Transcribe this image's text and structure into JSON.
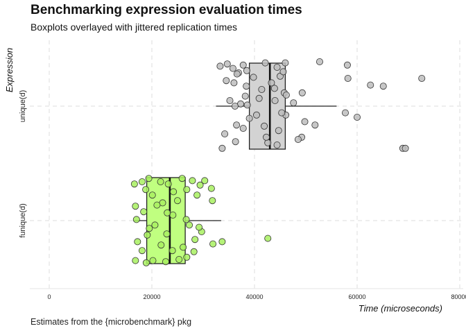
{
  "chart_data": {
    "type": "boxplot",
    "title": "Benchmarking expression evaluation times",
    "subtitle": "Boxplots overlayed with jittered replication times",
    "caption": "Estimates from the {microbenchmark} pkg",
    "xlabel": "Time (microseconds)",
    "ylabel": "Expression",
    "xlim": [
      -4000,
      80000
    ],
    "xticks": [
      0,
      20000,
      40000,
      60000,
      80000
    ],
    "tick_labels": [
      "0",
      "20000",
      "40000",
      "60000",
      "80000"
    ],
    "grid": "dashed",
    "categories": [
      "funique(d)",
      "unique(d)"
    ],
    "series": [
      {
        "category": "unique(d)",
        "fill": "#d3d3d3",
        "point_color": "#bdbdbd",
        "box": {
          "lower_whisker": 32500,
          "q1": 39000,
          "median": 43000,
          "q3": 46000,
          "upper_whisker": 56000
        },
        "points": [
          [
            34700,
            0.38
          ],
          [
            36900,
            0.3
          ],
          [
            35800,
            0.34
          ],
          [
            37800,
            0.37
          ],
          [
            38500,
            0.32
          ],
          [
            42100,
            0.39
          ],
          [
            44400,
            0.35
          ],
          [
            46000,
            0.39
          ],
          [
            52700,
            0.4
          ],
          [
            58100,
            0.37
          ],
          [
            62600,
            0.19
          ],
          [
            72600,
            0.25
          ],
          [
            65100,
            0.18
          ],
          [
            58200,
            0.25
          ],
          [
            45000,
            0.27
          ],
          [
            39800,
            0.26
          ],
          [
            36600,
            0.29
          ],
          [
            34500,
            0.23
          ],
          [
            33300,
            0.36
          ],
          [
            36000,
            0.21
          ],
          [
            41400,
            0.15
          ],
          [
            43900,
            0.16
          ],
          [
            45800,
            0.12
          ],
          [
            45600,
            0.31
          ],
          [
            40900,
            0.07
          ],
          [
            46200,
            0.1
          ],
          [
            49300,
            0.12
          ],
          [
            38200,
            0.09
          ],
          [
            37300,
            0.02
          ],
          [
            36200,
            0.0
          ],
          [
            38600,
            0.01
          ],
          [
            39000,
            -0.11
          ],
          [
            40400,
            -0.08
          ],
          [
            46100,
            -0.08
          ],
          [
            49800,
            -0.14
          ],
          [
            51800,
            -0.17
          ],
          [
            57700,
            -0.06
          ],
          [
            60000,
            -0.1
          ],
          [
            49200,
            -0.28
          ],
          [
            44700,
            -0.22
          ],
          [
            41900,
            -0.18
          ],
          [
            36300,
            -0.32
          ],
          [
            34200,
            -0.25
          ],
          [
            33700,
            -0.38
          ],
          [
            37800,
            -0.2
          ],
          [
            42600,
            -0.33
          ],
          [
            44400,
            -0.35
          ],
          [
            48500,
            -0.3
          ],
          [
            68900,
            -0.38
          ],
          [
            69400,
            -0.38
          ],
          [
            35200,
            0.05
          ],
          [
            47600,
            0.03
          ],
          [
            36500,
            -0.17
          ],
          [
            42300,
            -0.28
          ],
          [
            45300,
            -0.06
          ],
          [
            43300,
            0.21
          ],
          [
            44000,
            0.05
          ],
          [
            38400,
            0.18
          ]
        ]
      },
      {
        "category": "funique(d)",
        "fill": "#c0ff80",
        "point_color": "#a8f060",
        "box": {
          "lower_whisker": 16500,
          "q1": 19000,
          "median": 23500,
          "q3": 26500,
          "upper_whisker": 33500
        },
        "points": [
          [
            16600,
            0.33
          ],
          [
            18100,
            0.35
          ],
          [
            19400,
            0.38
          ],
          [
            21700,
            0.35
          ],
          [
            23200,
            0.33
          ],
          [
            25900,
            0.38
          ],
          [
            27900,
            0.36
          ],
          [
            29400,
            0.32
          ],
          [
            31600,
            0.29
          ],
          [
            30300,
            0.36
          ],
          [
            28800,
            0.23
          ],
          [
            26800,
            0.28
          ],
          [
            24200,
            0.26
          ],
          [
            22100,
            0.16
          ],
          [
            18800,
            0.28
          ],
          [
            16800,
            0.13
          ],
          [
            18400,
            0.08
          ],
          [
            17000,
            0.01
          ],
          [
            20600,
            -0.04
          ],
          [
            24100,
            0.05
          ],
          [
            27300,
            -0.04
          ],
          [
            29700,
            -0.1
          ],
          [
            31900,
            -0.21
          ],
          [
            28400,
            -0.17
          ],
          [
            26100,
            -0.24
          ],
          [
            24000,
            -0.27
          ],
          [
            21800,
            -0.22
          ],
          [
            18100,
            -0.27
          ],
          [
            16800,
            -0.36
          ],
          [
            18900,
            -0.38
          ],
          [
            20200,
            -0.36
          ],
          [
            22700,
            -0.37
          ],
          [
            25300,
            -0.35
          ],
          [
            26800,
            -0.33
          ],
          [
            17200,
            -0.19
          ],
          [
            19100,
            -0.13
          ],
          [
            21000,
            0.14
          ],
          [
            23000,
            0.07
          ],
          [
            25000,
            0.18
          ],
          [
            26700,
            0.01
          ],
          [
            29200,
            -0.06
          ],
          [
            31800,
            0.18
          ],
          [
            33700,
            -0.19
          ],
          [
            42600,
            -0.16
          ],
          [
            20100,
            0.23
          ],
          [
            22900,
            -0.12
          ],
          [
            19500,
            -0.07
          ],
          [
            28200,
            -0.28
          ]
        ]
      }
    ]
  }
}
